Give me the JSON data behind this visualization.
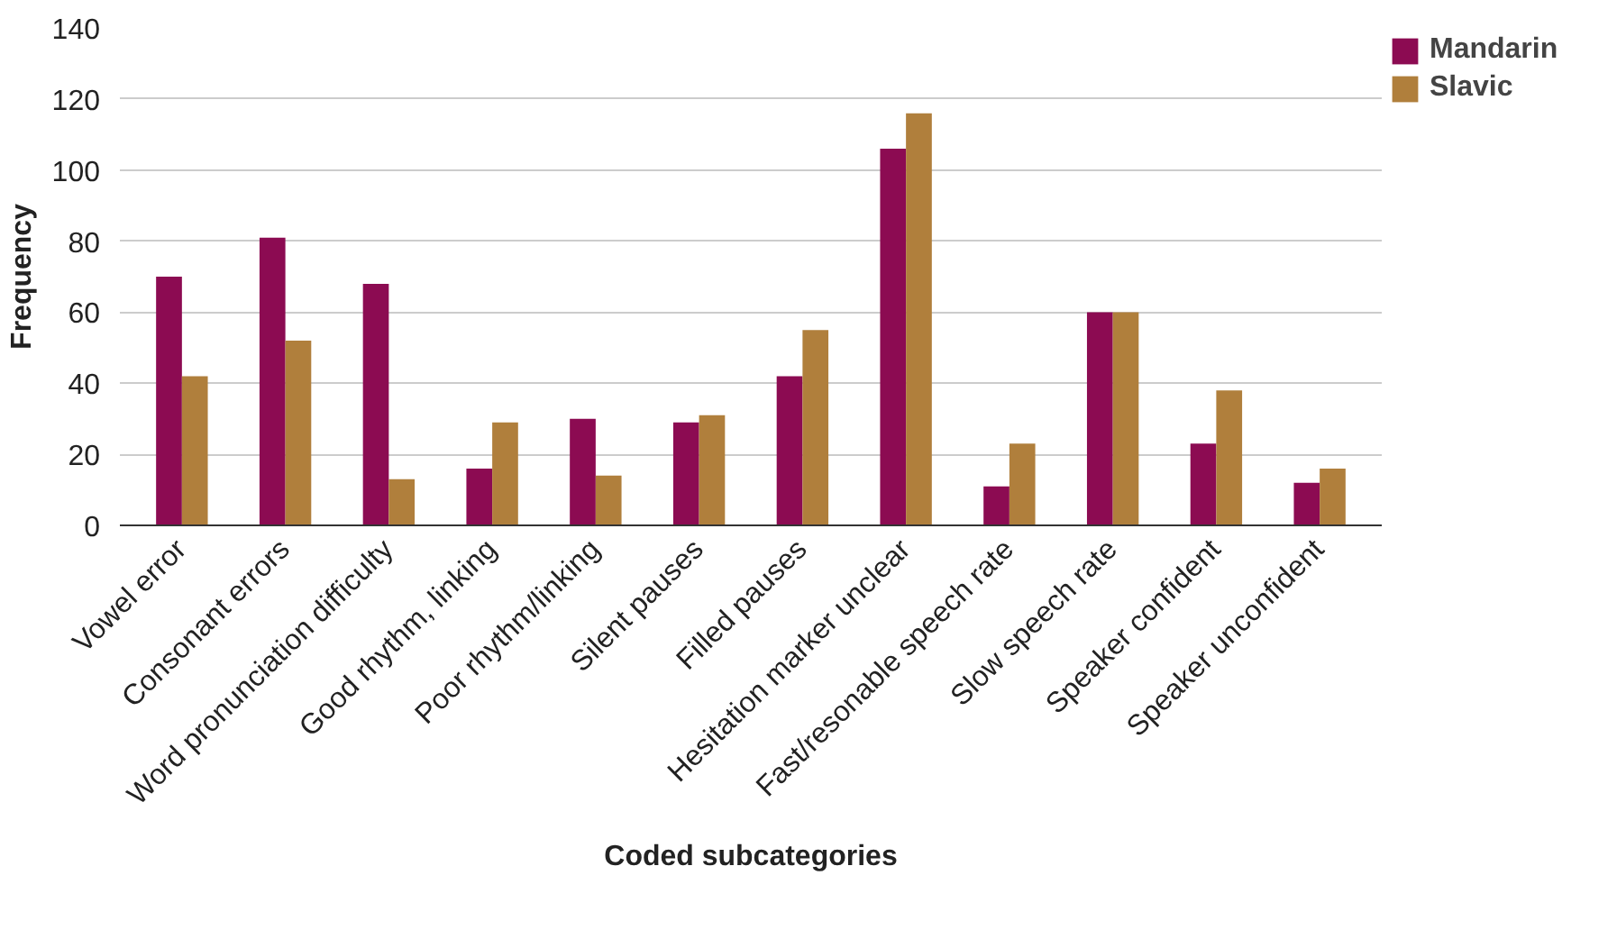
{
  "chart_data": {
    "type": "bar",
    "xlabel": "Coded subcategories",
    "ylabel": "Frequency",
    "categories": [
      "Vowel error",
      "Consonant errors",
      "Word pronunciation difficulty",
      "Good rhythm, linking",
      "Poor rhythm/linking",
      "Silent pauses",
      "Filled pauses",
      "Hesitation marker unclear",
      "Fast/resonable speech rate",
      "Slow speech rate",
      "Speaker confident",
      "Speaker unconfident"
    ],
    "series": [
      {
        "name": "Mandarin",
        "color": "#8c0b52",
        "values": [
          70,
          81,
          68,
          16,
          30,
          29,
          42,
          106,
          11,
          60,
          23,
          12
        ]
      },
      {
        "name": "Slavic",
        "color": "#b07f3c",
        "values": [
          42,
          52,
          13,
          29,
          14,
          31,
          55,
          116,
          23,
          60,
          38,
          16
        ]
      }
    ],
    "ylim": [
      0,
      140
    ],
    "yticks": [
      0,
      20,
      40,
      60,
      80,
      100,
      120,
      140
    ],
    "grid": "y",
    "legend": "top right"
  }
}
